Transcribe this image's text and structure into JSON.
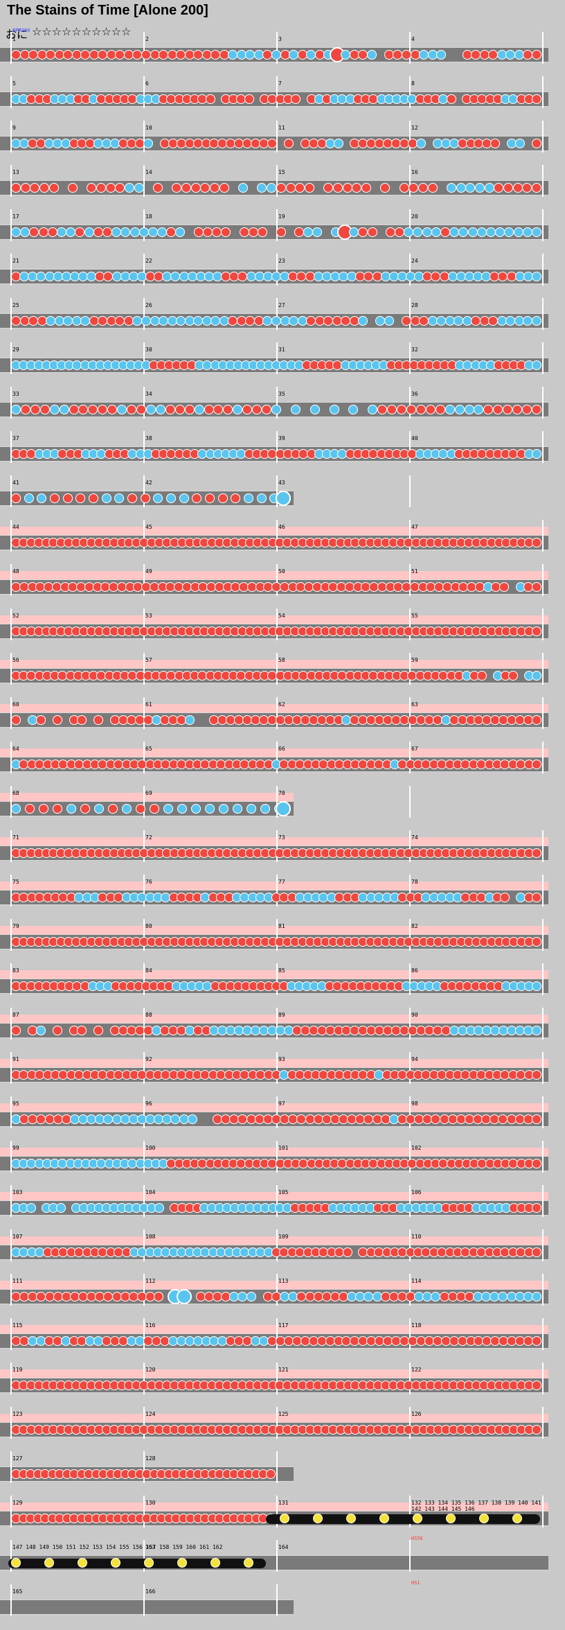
{
  "title": "The Stains of Time [Alone 200]",
  "course": {
    "label": "おに",
    "stars": "☆☆☆☆☆☆☆☆☆☆"
  },
  "colors": {
    "don": "#f0473f",
    "ka": "#59c5ef",
    "lane": "#7a7a7a",
    "gogo": "#ffc6c6",
    "roll": "#f4e23a"
  },
  "events": [
    {
      "row": 0,
      "bar": 1,
      "text": "BPM200",
      "color": "#3b4cff"
    },
    {
      "row": 34,
      "bar": 4,
      "text": "HS56",
      "color": "#ff3b3b"
    },
    {
      "row": 35,
      "bar": 4,
      "text": "HS1",
      "color": "#ff3b3b"
    }
  ],
  "rows": [
    {
      "bars": [
        1,
        2,
        3,
        4
      ],
      "gogo": false,
      "pattern": "dddddddddddddddddddddddddkkkkdkdkdkdkBkddk_ddddkkk__ddddkkkdd"
    },
    {
      "bars": [
        5,
        6,
        7,
        8
      ],
      "gogo": false,
      "pattern": "kkdddkkkddkdddddkkkddddddd_dddd_ddddd_dkdkkkdddkkkkkdddkd_dddddkkddd"
    },
    {
      "bars": [
        9,
        10,
        11,
        12
      ],
      "gogo": false,
      "pattern": "kkddkkkdddkkkdddk_dddddddddddddd_d_dddkk_ddddddddk_kkkddddd_kk_d"
    },
    {
      "bars": [
        13,
        14,
        15,
        16
      ],
      "gogo": false,
      "pattern": "ddddd_d_ddddkk_d_dddddd_k_kkdddd_ddddd_d_dddd_kkkkkddddd"
    },
    {
      "bars": [
        17,
        18,
        19,
        20
      ],
      "gogo": false,
      "pattern": "kkdddkkdkddkkkkkkdk_dddd_ddd_d_dkk_kBkdd_ddkkkkdkkkkkkkkkk"
    },
    {
      "bars": [
        21,
        22,
        23,
        24
      ],
      "gogo": false,
      "pattern": "dkkkkkkkkkddkkkkddkkkkkkkdddkkkkkdddkkkkkdddkkkkkdddkkkkkdddkkk"
    },
    {
      "bars": [
        25,
        26,
        27,
        28
      ],
      "gogo": false,
      "pattern": "ddddkkkkkdddddkkkkkkkkkkkddddkkkkkddddddk_kk_dddkkkkkdddkkkkk"
    },
    {
      "bars": [
        29,
        30,
        31,
        32
      ],
      "gogo": false,
      "pattern": "kkkkkkkkkkkkkkkkkkddddddkkkkkkkkkkkkkkdddddkkkkkkdddddddddkkkkkddddkk"
    },
    {
      "bars": [
        33,
        34,
        35,
        36
      ],
      "gogo": false,
      "pattern": "kdddkkdddddkddkkdddkdddkdddk_k_k_k_k_kdddddddkkkkdddddd"
    },
    {
      "bars": [
        37,
        38,
        39,
        40
      ],
      "gogo": false,
      "pattern": "dddkkkdddkkkdddkkkddddddkkkkkkdddddddddkkkkdddddddddkkkkkdddddddddkk"
    },
    {
      "bars": [
        41,
        42,
        43
      ],
      "gogo": false,
      "short": true,
      "pattern": "dkkddddkkddkkkddddkkkdddkkd_KKK"
    },
    {
      "bars": [
        44,
        45,
        46,
        47
      ],
      "gogo": true,
      "pattern": "dddddddddddddddddddddddddddddddddddddddddddddddddddddddddddddddddddddd"
    },
    {
      "bars": [
        48,
        49,
        50,
        51
      ],
      "gogo": true,
      "pattern": "ddddddddddddddddddddddddddddddddddddddddddddddddddddddddddkdd_kdd"
    },
    {
      "bars": [
        52,
        53,
        54,
        55
      ],
      "gogo": true,
      "pattern": "dddddddddddddddddddddddddddddddddddddddddddddddddddddddddddddddddddddd"
    },
    {
      "bars": [
        56,
        57,
        58,
        59
      ],
      "gogo": true,
      "pattern": "ddddddddddddddddddddddddddddddddddddddddddddddddddddddddddkdd_kdd_kk"
    },
    {
      "bars": [
        60,
        61,
        62,
        63
      ],
      "gogo": true,
      "pattern": "d_kd_d_dd_d_dddddkdddk__ddddddddddddddddkdddddddddddkddddddddddd"
    },
    {
      "bars": [
        64,
        65,
        66,
        67
      ],
      "gogo": true,
      "pattern": "kddddddddddddddddddddddddddddddddkddddddddddddddkdddddddddddddddddd"
    },
    {
      "bars": [
        68,
        69,
        70
      ],
      "gogo": true,
      "short": true,
      "pattern": "kdddkdkdkddkkkkkkkkkkdddd_KKK"
    },
    {
      "bars": [
        71,
        72,
        73,
        74
      ],
      "gogo": true,
      "pattern": "dddddddddddddddddddddddddddddddddddddddddddddddddddddddddddddddddddddd"
    },
    {
      "bars": [
        75,
        76,
        77,
        78
      ],
      "gogo": true,
      "pattern": "ddddddddkkkdddkkkkkkddddkdddkkkkkdddkkkkkdddkkkkkdddkkkkkdddkdd_kdd"
    },
    {
      "bars": [
        79,
        80,
        81,
        82
      ],
      "gogo": true,
      "pattern": "dddddddddddddddddddddddddddddddddddddddddddddddddddddddddddddddddddddd"
    },
    {
      "bars": [
        83,
        84,
        85,
        86
      ],
      "gogo": true,
      "pattern": "ddddddddddkkkddddddddkkkkkddddddddddkkkkkddddddddddkkkkkddddddddkkkkk"
    },
    {
      "bars": [
        87,
        88,
        89,
        90
      ],
      "gogo": true,
      "pattern": "d_dk_d_dd_d_dddddkdddkddkkkkkkkkkkdddddddddddddddddddkkkkkkkkkkk"
    },
    {
      "bars": [
        91,
        92,
        93,
        94
      ],
      "gogo": true,
      "pattern": "ddddddddddddddddddddddddddddddddddkdddddddddddkdddddddddddddddddddd"
    },
    {
      "bars": [
        95,
        96,
        97,
        98
      ],
      "gogo": true,
      "pattern": "kddddddkkkkkkkkkkkkkkk__dddddddddddddddddddddkddddddddddddddddd"
    },
    {
      "bars": [
        99,
        100,
        101,
        102
      ],
      "gogo": true,
      "pattern": "kkkkkkkkkkkkkkkkkkkkdddddddddddddddddddddddddddddddddddddddddddddddd"
    },
    {
      "bars": [
        103,
        104,
        105,
        106
      ],
      "gogo": true,
      "pattern": "kkk_kkk_kkkkkkkkkkkk_ddddkkkkkkkkkkkkdddddkkkkkkdddkkkkkkddddkkkkkdddd"
    },
    {
      "bars": [
        107,
        108,
        109,
        110
      ],
      "gogo": true,
      "pattern": "kkkkdddddddddddkkkkkkkkkkkkkkkkkkdddddddddd_ddddddddddddddddddddddd"
    },
    {
      "bars": [
        111,
        112,
        113,
        114
      ],
      "gogo": true,
      "pattern": "dddddddddddddddddd_KK_ddddkkk_ddkkddddddkkkkddddkkkddddkkkkkkkk"
    },
    {
      "bars": [
        115,
        116,
        117,
        118
      ],
      "gogo": true,
      "pattern": "ddkkddkddkkdddkkdddkkkkkkkdddkkddddddddddddddddddddddddddddddddd"
    },
    {
      "bars": [
        119,
        120,
        121,
        122
      ],
      "gogo": true,
      "pattern": "dddddddddddddddddddddddddddddddddddddddddddddddddddddddddddddddddddddd"
    },
    {
      "bars": [
        123,
        124,
        125,
        126
      ],
      "gogo": true,
      "pattern": "dddddddddddddddddddddddddddddddddddddddddddddddddddddddddddddddddddddd"
    },
    {
      "bars": [
        127,
        128
      ],
      "gogo": false,
      "short": true,
      "pattern": "dddddddddddddddddddddddddddddddddddd"
    },
    {
      "bars": [
        129,
        130,
        131,
        "132 133 134 135 136 137 138 139 140 141 142 143 144 145 146"
      ],
      "gogo": true,
      "rollFrom": 0.5,
      "pattern": "dddddddddddddddddddddddddddddddddddd"
    },
    {
      "bars": [
        "147 148 149 150 151 152 153 154 155 156 157 158 159 160 161 162",
        163,
        164
      ],
      "gogo": false,
      "rollTo": 0.5,
      "pattern": ""
    },
    {
      "bars": [
        165,
        166
      ],
      "gogo": false,
      "short": true,
      "pattern": ""
    }
  ]
}
